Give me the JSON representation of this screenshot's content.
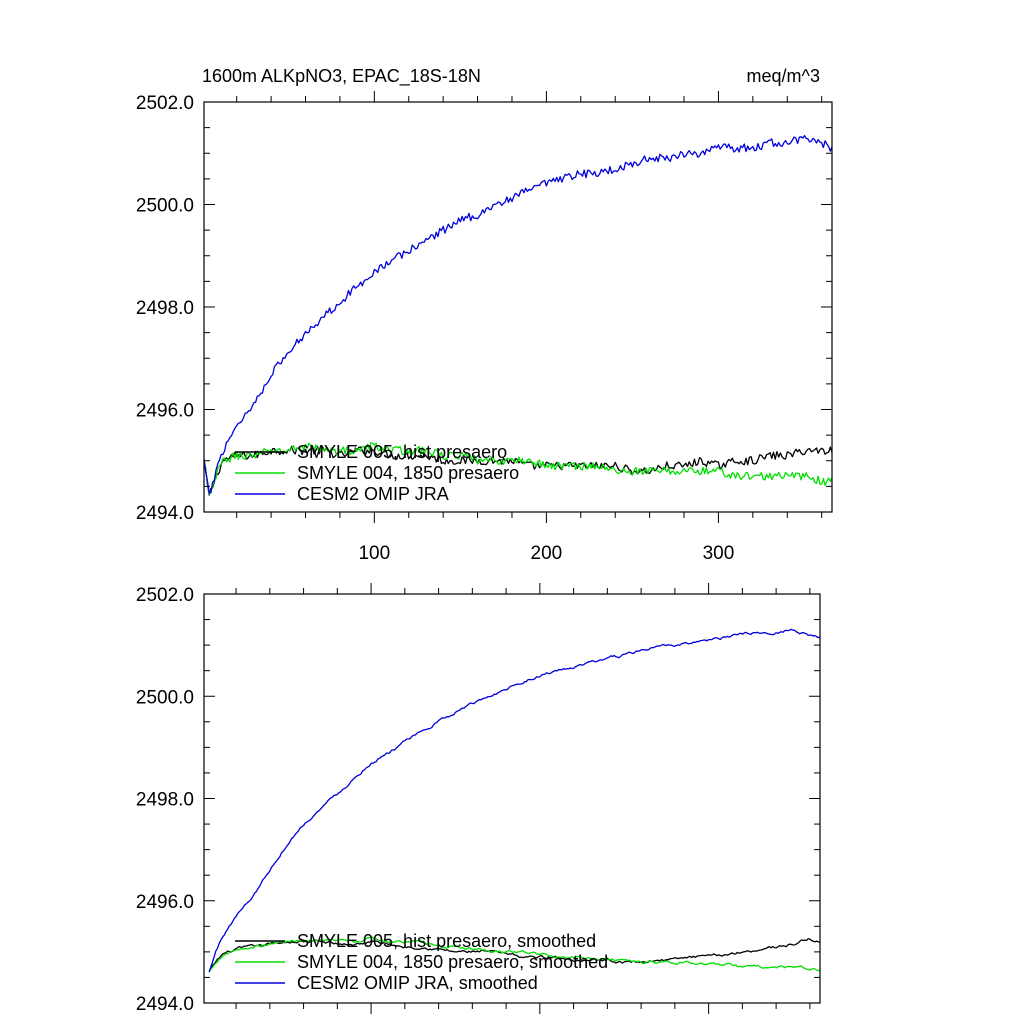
{
  "header": {
    "title": "1600m ALKpNO3, EPAC_18S-18N",
    "units": "meq/m^3"
  },
  "chart_data": [
    {
      "type": "line",
      "title": "1600m ALKpNO3, EPAC_18S-18N",
      "ylabel": "meq/m^3",
      "xlabel": "",
      "xlim": [
        1,
        366
      ],
      "ylim": [
        2494,
        2502
      ],
      "x_ticks": [
        100,
        200,
        300
      ],
      "x_ticks_labeled": true,
      "y_ticks": [
        2494,
        2496,
        2498,
        2500,
        2502
      ],
      "y_tick_labels": [
        "2494.0",
        "2496.0",
        "2498.0",
        "2500.0",
        "2502.0"
      ],
      "legend_placement": "bottom-left",
      "grid": false,
      "series": [
        {
          "name": "SMYLE 005, hist presaero",
          "color": "#000000",
          "x": [
            1,
            4,
            8,
            12,
            20,
            30,
            40,
            50,
            60,
            70,
            80,
            90,
            100,
            110,
            120,
            130,
            140,
            150,
            160,
            170,
            180,
            190,
            200,
            210,
            220,
            230,
            240,
            250,
            260,
            270,
            280,
            290,
            300,
            310,
            320,
            330,
            340,
            350,
            360,
            366
          ],
          "values": [
            2495.0,
            2494.3,
            2494.7,
            2495.0,
            2495.1,
            2495.1,
            2495.2,
            2495.2,
            2495.2,
            2495.2,
            2495.1,
            2495.2,
            2495.2,
            2495.1,
            2495.1,
            2495.1,
            2495.0,
            2495.0,
            2495.0,
            2495.0,
            2495.0,
            2494.9,
            2494.9,
            2494.9,
            2494.9,
            2494.9,
            2494.9,
            2494.8,
            2494.8,
            2494.9,
            2494.9,
            2495.0,
            2494.9,
            2495.0,
            2495.0,
            2495.1,
            2495.1,
            2495.2,
            2495.2,
            2495.2
          ],
          "noise": 0.08
        },
        {
          "name": "SMYLE 004, 1850 presaero",
          "color": "#00e000",
          "x": [
            1,
            4,
            8,
            12,
            20,
            30,
            40,
            50,
            60,
            70,
            80,
            90,
            100,
            110,
            120,
            130,
            140,
            150,
            160,
            170,
            180,
            190,
            200,
            210,
            220,
            230,
            240,
            250,
            260,
            270,
            280,
            290,
            300,
            310,
            320,
            330,
            340,
            350,
            360,
            366
          ],
          "values": [
            2495.0,
            2494.3,
            2494.7,
            2495.0,
            2495.1,
            2495.1,
            2495.2,
            2495.2,
            2495.3,
            2495.2,
            2495.2,
            2495.2,
            2495.3,
            2495.2,
            2495.2,
            2495.2,
            2495.1,
            2495.1,
            2495.0,
            2495.0,
            2495.0,
            2495.0,
            2494.9,
            2494.9,
            2494.9,
            2494.9,
            2494.8,
            2494.8,
            2494.8,
            2494.8,
            2494.8,
            2494.8,
            2494.8,
            2494.7,
            2494.7,
            2494.7,
            2494.7,
            2494.7,
            2494.6,
            2494.6
          ],
          "noise": 0.08
        },
        {
          "name": "CESM2 OMIP JRA",
          "color": "#0000dd",
          "x": [
            1,
            4,
            8,
            12,
            20,
            30,
            40,
            50,
            60,
            70,
            80,
            90,
            100,
            110,
            120,
            130,
            140,
            150,
            160,
            170,
            180,
            190,
            200,
            210,
            220,
            230,
            240,
            250,
            260,
            270,
            280,
            290,
            300,
            310,
            320,
            330,
            340,
            350,
            360,
            366
          ],
          "values": [
            2495.0,
            2494.3,
            2494.8,
            2495.2,
            2495.7,
            2496.1,
            2496.7,
            2497.1,
            2497.5,
            2497.8,
            2498.1,
            2498.4,
            2498.7,
            2498.9,
            2499.1,
            2499.3,
            2499.5,
            2499.7,
            2499.8,
            2500.0,
            2500.1,
            2500.3,
            2500.4,
            2500.5,
            2500.6,
            2500.6,
            2500.7,
            2500.8,
            2500.9,
            2500.9,
            2501.0,
            2501.0,
            2501.1,
            2501.1,
            2501.1,
            2501.2,
            2501.2,
            2501.3,
            2501.2,
            2501.1
          ],
          "noise": 0.08
        }
      ]
    },
    {
      "type": "line",
      "title": "",
      "xlabel": "",
      "xlim": [
        1,
        366
      ],
      "ylim": [
        2494,
        2502
      ],
      "x_ticks": [
        100,
        200,
        300
      ],
      "x_ticks_labeled": false,
      "y_ticks": [
        2494,
        2496,
        2498,
        2500,
        2502
      ],
      "y_tick_labels": [
        "2494.0",
        "2496.0",
        "2498.0",
        "2500.0",
        "2502.0"
      ],
      "legend_placement": "bottom-left",
      "grid": false,
      "series": [
        {
          "name": "SMYLE 005, hist presaero, smoothed",
          "color": "#000000",
          "x": [
            4,
            8,
            12,
            20,
            30,
            40,
            50,
            60,
            70,
            80,
            90,
            100,
            110,
            120,
            130,
            140,
            150,
            160,
            170,
            180,
            190,
            200,
            210,
            220,
            230,
            240,
            250,
            260,
            270,
            280,
            290,
            300,
            310,
            320,
            330,
            340,
            350,
            355,
            360,
            366
          ],
          "values": [
            2494.6,
            2494.8,
            2494.95,
            2495.05,
            2495.1,
            2495.15,
            2495.2,
            2495.2,
            2495.2,
            2495.15,
            2495.15,
            2495.2,
            2495.15,
            2495.1,
            2495.1,
            2495.05,
            2495.0,
            2495.0,
            2495.0,
            2494.95,
            2494.9,
            2494.9,
            2494.9,
            2494.85,
            2494.85,
            2494.85,
            2494.8,
            2494.8,
            2494.85,
            2494.85,
            2494.9,
            2494.9,
            2494.95,
            2495.0,
            2495.05,
            2495.1,
            2495.15,
            2495.2,
            2495.25,
            2495.2
          ],
          "noise": 0.025
        },
        {
          "name": "SMYLE 004, 1850 presaero, smoothed",
          "color": "#00e000",
          "x": [
            4,
            8,
            12,
            20,
            30,
            40,
            50,
            60,
            70,
            80,
            90,
            100,
            110,
            120,
            130,
            140,
            150,
            160,
            170,
            180,
            190,
            200,
            210,
            220,
            230,
            240,
            250,
            260,
            270,
            280,
            290,
            300,
            310,
            320,
            330,
            340,
            350,
            355,
            360,
            366
          ],
          "values": [
            2494.6,
            2494.8,
            2494.95,
            2495.05,
            2495.1,
            2495.15,
            2495.2,
            2495.25,
            2495.2,
            2495.2,
            2495.2,
            2495.25,
            2495.2,
            2495.2,
            2495.2,
            2495.1,
            2495.1,
            2495.05,
            2495.0,
            2495.0,
            2495.0,
            2494.95,
            2494.9,
            2494.9,
            2494.9,
            2494.85,
            2494.85,
            2494.8,
            2494.8,
            2494.8,
            2494.8,
            2494.75,
            2494.75,
            2494.7,
            2494.7,
            2494.7,
            2494.7,
            2494.7,
            2494.65,
            2494.65
          ],
          "noise": 0.025
        },
        {
          "name": "CESM2 OMIP JRA, smoothed",
          "color": "#0000dd",
          "x": [
            4,
            8,
            12,
            20,
            30,
            40,
            50,
            60,
            70,
            80,
            90,
            100,
            110,
            120,
            130,
            140,
            150,
            160,
            170,
            180,
            190,
            200,
            210,
            220,
            230,
            240,
            250,
            260,
            270,
            280,
            290,
            300,
            310,
            320,
            330,
            340,
            350,
            355,
            360,
            366
          ],
          "values": [
            2494.6,
            2495.0,
            2495.3,
            2495.7,
            2496.1,
            2496.6,
            2497.1,
            2497.5,
            2497.8,
            2498.1,
            2498.4,
            2498.7,
            2498.9,
            2499.1,
            2499.3,
            2499.5,
            2499.7,
            2499.85,
            2500.0,
            2500.15,
            2500.3,
            2500.4,
            2500.5,
            2500.55,
            2500.65,
            2500.75,
            2500.8,
            2500.9,
            2500.95,
            2501.0,
            2501.05,
            2501.1,
            2501.15,
            2501.2,
            2501.25,
            2501.25,
            2501.3,
            2501.25,
            2501.2,
            2501.15
          ],
          "noise": 0.025
        }
      ]
    }
  ]
}
